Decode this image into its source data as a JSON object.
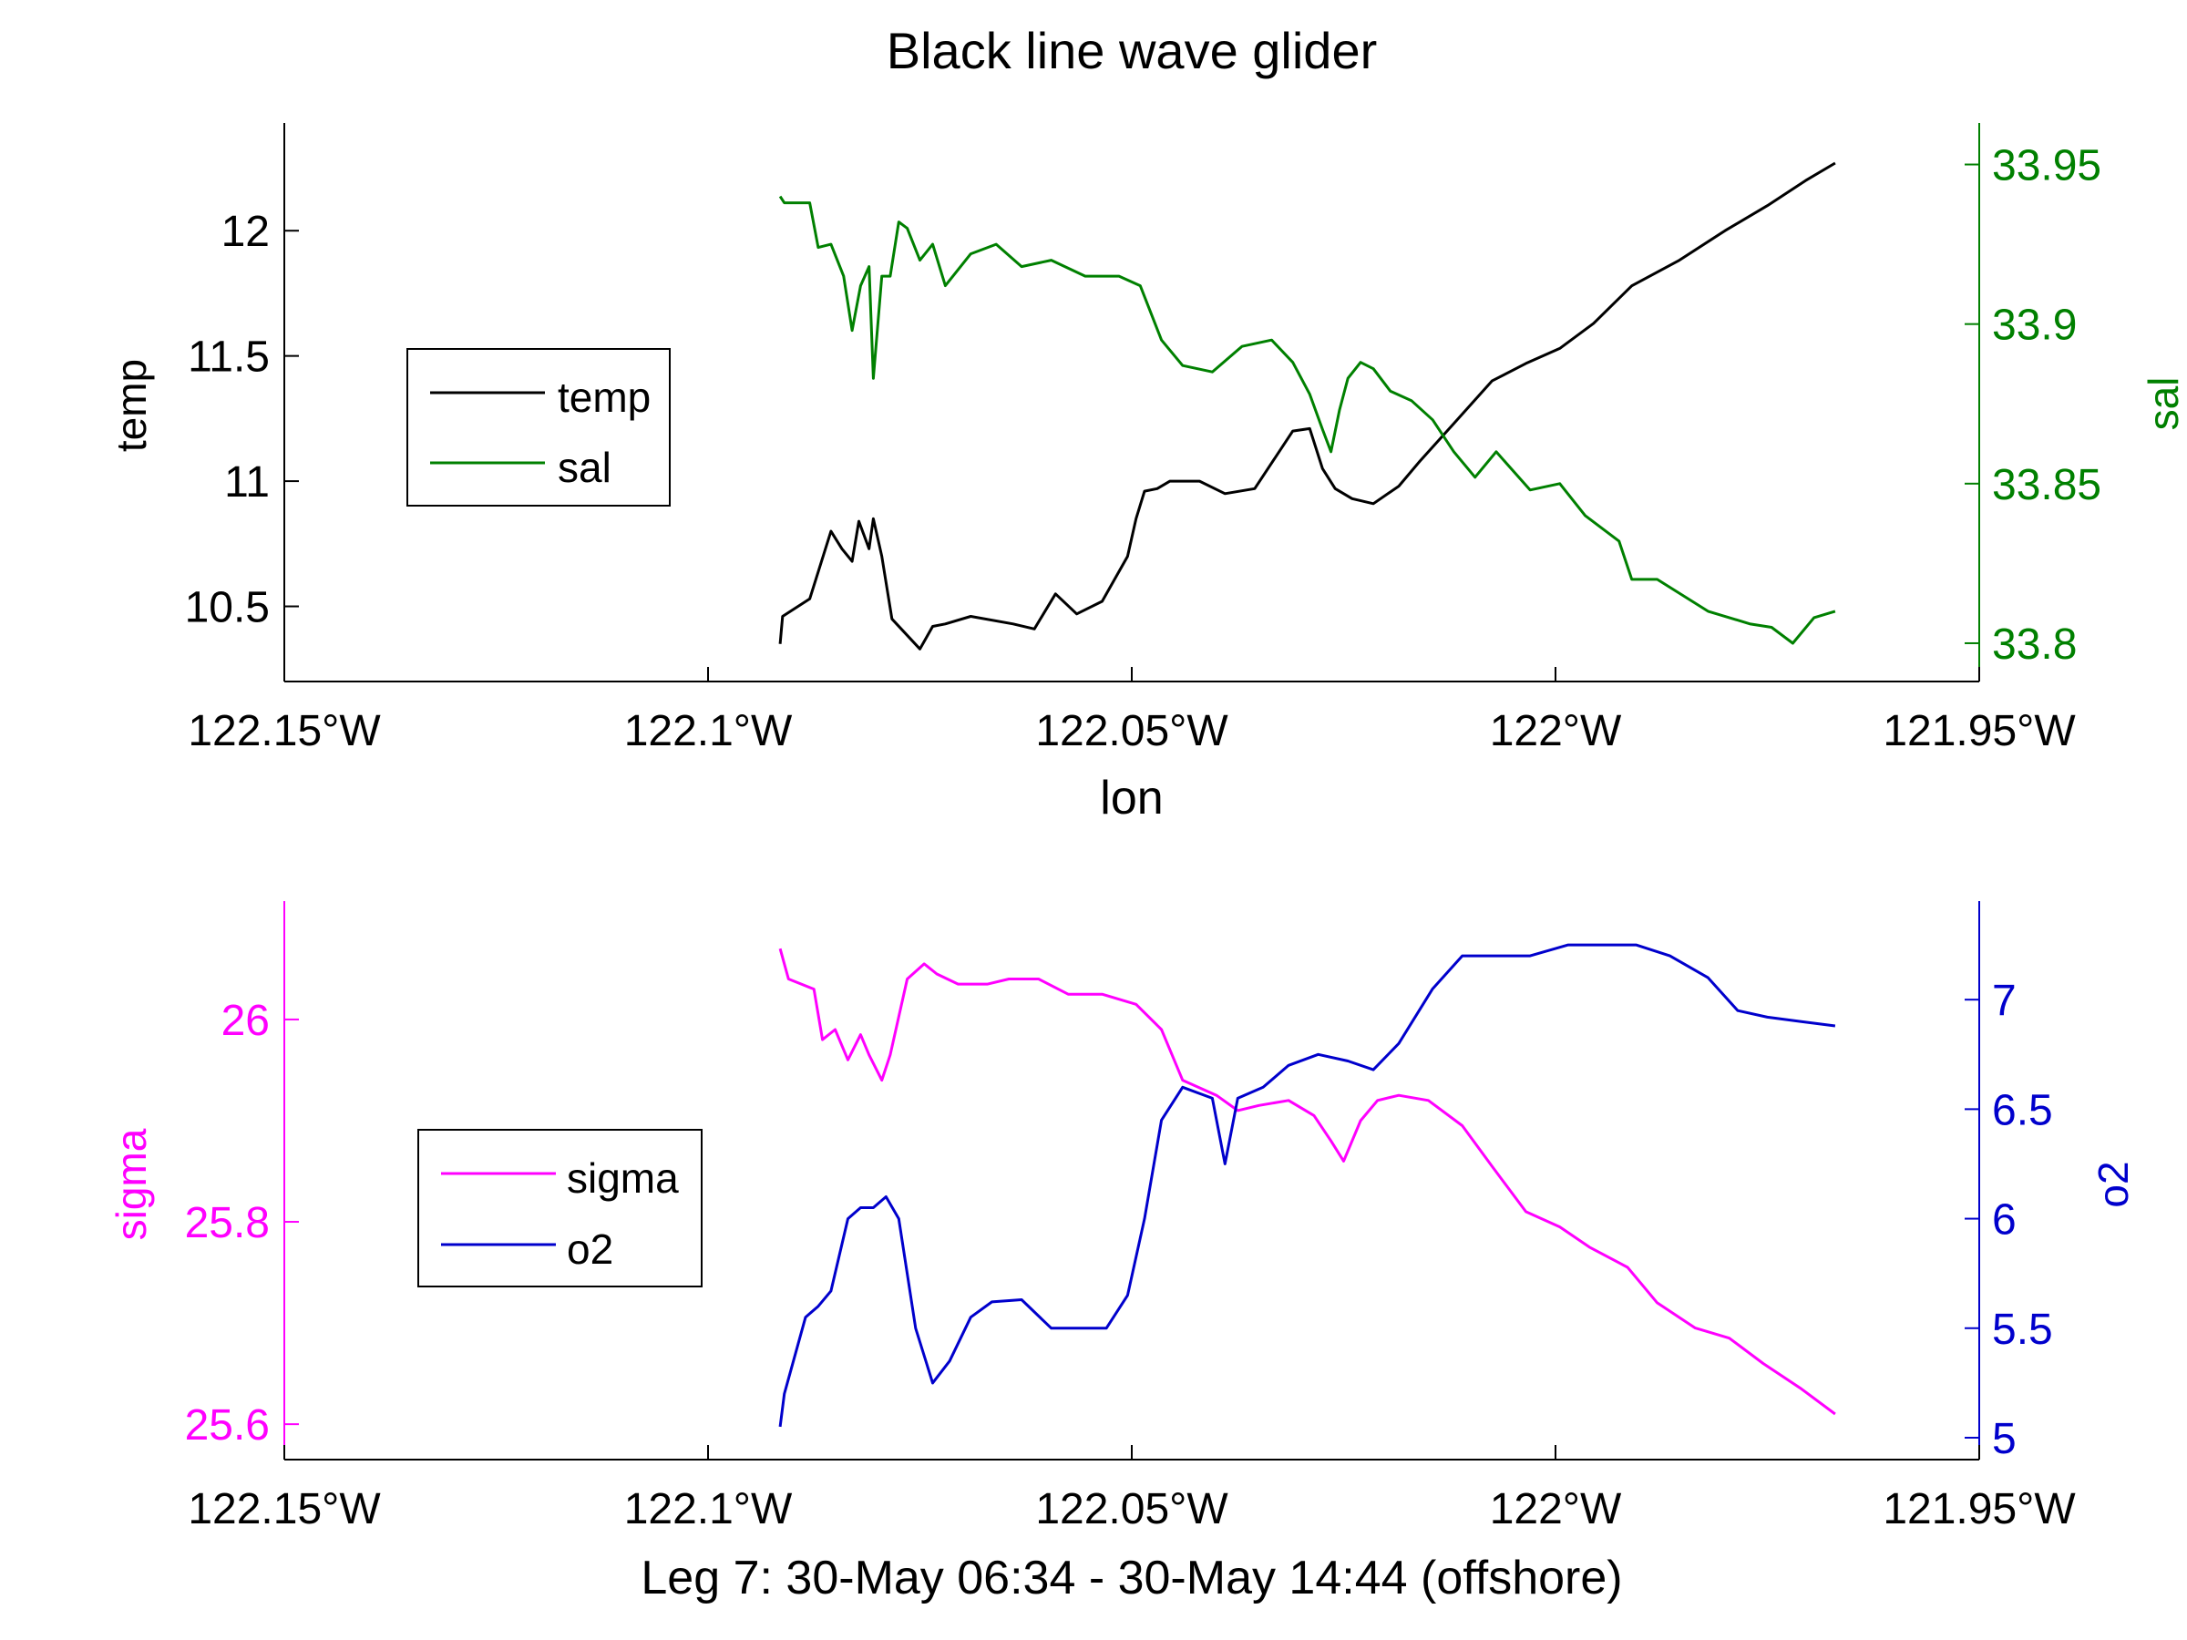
{
  "title": "Black line wave glider",
  "top": {
    "xlabel": "lon",
    "y1label": "temp",
    "y2label": "sal",
    "legend": [
      "temp",
      "sal"
    ]
  },
  "bottom": {
    "xlabel": "Leg 7: 30-May 06:34 - 30-May 14:44 (offshore)",
    "y1label": "sigma",
    "y2label": "o2",
    "legend": [
      "sigma",
      "o2"
    ]
  },
  "colors": {
    "temp": "#000000",
    "sal": "#008000",
    "sigma": "#ff00ff",
    "o2": "#0000cc",
    "axis": "#000000"
  },
  "chart_data": [
    {
      "type": "line",
      "title": "Black line wave glider",
      "xlabel": "lon",
      "xlim": [
        -122.15,
        -121.95
      ],
      "xticks": [
        -122.15,
        -122.1,
        -122.05,
        -122.0,
        -121.95
      ],
      "xticklabels": [
        "122.15°W",
        "122.1°W",
        "122.05°W",
        "122°W",
        "121.95°W"
      ],
      "grid": false,
      "legend_position": "left",
      "y_left": {
        "label": "temp",
        "lim": [
          10.2,
          12.43
        ],
        "ticks": [
          10.5,
          11,
          11.5,
          12
        ],
        "ticklabels": [
          "10.5",
          "11",
          "11.5",
          "12"
        ]
      },
      "y_right": {
        "label": "sal",
        "lim": [
          33.788,
          33.963
        ],
        "ticks": [
          33.8,
          33.85,
          33.9,
          33.95
        ],
        "ticklabels": [
          "33.8",
          "33.85",
          "33.9",
          "33.95"
        ]
      },
      "series": [
        {
          "name": "temp",
          "axis": "left",
          "x": [
            -122.0915,
            -122.0912,
            -122.088,
            -122.0855,
            -122.0842,
            -122.083,
            -122.0822,
            -122.081,
            -122.0805,
            -122.0795,
            -122.0783,
            -122.075,
            -122.0735,
            -122.072,
            -122.069,
            -122.064,
            -122.0615,
            -122.059,
            -122.0565,
            -122.0535,
            -122.0505,
            -122.0495,
            -122.0485,
            -122.047,
            -122.0455,
            -122.042,
            -122.039,
            -122.0355,
            -122.031,
            -122.029,
            -122.0275,
            -122.026,
            -122.024,
            -122.0215,
            -122.0185,
            -122.016,
            -122.012,
            -122.0075,
            -122.0035,
            -121.9995,
            -121.9955,
            -121.991,
            -121.9855,
            -121.98,
            -121.975,
            -121.9705,
            -121.967
          ],
          "y": [
            10.35,
            10.46,
            10.53,
            10.8,
            10.73,
            10.68,
            10.84,
            10.73,
            10.85,
            10.7,
            10.45,
            10.33,
            10.42,
            10.43,
            10.46,
            10.43,
            10.41,
            10.55,
            10.47,
            10.52,
            10.7,
            10.85,
            10.96,
            10.97,
            11.0,
            11.0,
            10.95,
            10.97,
            11.2,
            11.21,
            11.05,
            10.97,
            10.93,
            10.91,
            10.98,
            11.08,
            11.23,
            11.4,
            11.47,
            11.53,
            11.63,
            11.78,
            11.88,
            12.0,
            12.1,
            12.2,
            12.27
          ]
        },
        {
          "name": "sal",
          "axis": "right",
          "x": [
            -122.0915,
            -122.091,
            -122.088,
            -122.087,
            -122.0855,
            -122.084,
            -122.083,
            -122.082,
            -122.081,
            -122.0805,
            -122.0795,
            -122.0785,
            -122.0775,
            -122.0765,
            -122.075,
            -122.0735,
            -122.072,
            -122.069,
            -122.066,
            -122.063,
            -122.0595,
            -122.0555,
            -122.0515,
            -122.049,
            -122.0465,
            -122.044,
            -122.0405,
            -122.037,
            -122.0335,
            -122.031,
            -122.029,
            -122.0275,
            -122.0265,
            -122.0255,
            -122.0245,
            -122.023,
            -122.0215,
            -122.0195,
            -122.017,
            -122.0145,
            -122.012,
            -122.0095,
            -122.007,
            -122.003,
            -121.9995,
            -121.9965,
            -121.9925,
            -121.991,
            -121.988,
            -121.985,
            -121.982,
            -121.9795,
            -121.977,
            -121.9745,
            -121.972,
            -121.9695,
            -121.967
          ],
          "y": [
            33.94,
            33.938,
            33.938,
            33.924,
            33.925,
            33.915,
            33.898,
            33.912,
            33.918,
            33.883,
            33.915,
            33.915,
            33.932,
            33.93,
            33.92,
            33.925,
            33.912,
            33.922,
            33.925,
            33.918,
            33.92,
            33.915,
            33.915,
            33.912,
            33.895,
            33.887,
            33.885,
            33.893,
            33.895,
            33.888,
            33.878,
            33.867,
            33.86,
            33.873,
            33.883,
            33.888,
            33.886,
            33.879,
            33.876,
            33.87,
            33.86,
            33.852,
            33.86,
            33.848,
            33.85,
            33.84,
            33.832,
            33.82,
            33.82,
            33.815,
            33.81,
            33.808,
            33.806,
            33.805,
            33.8,
            33.808,
            33.81
          ]
        }
      ]
    },
    {
      "type": "line",
      "xlabel": "Leg 7: 30-May 06:34 - 30-May 14:44 (offshore)",
      "xlim": [
        -122.15,
        -121.95
      ],
      "xticks": [
        -122.15,
        -122.1,
        -122.05,
        -122.0,
        -121.95
      ],
      "xticklabels": [
        "122.15°W",
        "122.1°W",
        "122.05°W",
        "122°W",
        "121.95°W"
      ],
      "grid": false,
      "legend_position": "left",
      "y_left": {
        "label": "sigma",
        "lim": [
          25.565,
          26.117
        ],
        "ticks": [
          25.6,
          25.8,
          26.0
        ],
        "ticklabels": [
          "25.6",
          "25.8",
          "26"
        ]
      },
      "y_right": {
        "label": "o2",
        "lim": [
          4.9,
          7.45
        ],
        "ticks": [
          5,
          5.5,
          6,
          6.5,
          7
        ],
        "ticklabels": [
          "5",
          "5.5",
          "6",
          "6.5",
          "7"
        ]
      },
      "series": [
        {
          "name": "sigma",
          "axis": "left",
          "x": [
            -122.0915,
            -122.0905,
            -122.0875,
            -122.0865,
            -122.085,
            -122.0835,
            -122.082,
            -122.081,
            -122.0795,
            -122.0785,
            -122.0765,
            -122.0745,
            -122.073,
            -122.0705,
            -122.067,
            -122.0645,
            -122.061,
            -122.0575,
            -122.0535,
            -122.0495,
            -122.0465,
            -122.044,
            -122.04,
            -122.0375,
            -122.035,
            -122.0315,
            -122.0285,
            -122.0265,
            -122.025,
            -122.023,
            -122.021,
            -122.0185,
            -122.015,
            -122.011,
            -122.0075,
            -122.0035,
            -121.9995,
            -121.996,
            -121.9915,
            -121.988,
            -121.9835,
            -121.9795,
            -121.9755,
            -121.971,
            -121.967
          ],
          "y": [
            26.07,
            26.04,
            26.03,
            25.98,
            25.99,
            25.96,
            25.985,
            25.965,
            25.94,
            25.965,
            26.04,
            26.055,
            26.045,
            26.035,
            26.035,
            26.04,
            26.04,
            26.025,
            26.025,
            26.015,
            25.99,
            25.94,
            25.925,
            25.91,
            25.915,
            25.92,
            25.905,
            25.88,
            25.86,
            25.9,
            25.92,
            25.925,
            25.92,
            25.895,
            25.855,
            25.81,
            25.795,
            25.775,
            25.755,
            25.72,
            25.695,
            25.685,
            25.66,
            25.635,
            25.61
          ]
        },
        {
          "name": "o2",
          "axis": "right",
          "x": [
            -122.0915,
            -122.091,
            -122.0885,
            -122.087,
            -122.0855,
            -122.0835,
            -122.082,
            -122.0805,
            -122.079,
            -122.0775,
            -122.0755,
            -122.0735,
            -122.0715,
            -122.069,
            -122.0665,
            -122.063,
            -122.0595,
            -122.056,
            -122.053,
            -122.0505,
            -122.0485,
            -122.0465,
            -122.044,
            -122.0405,
            -122.039,
            -122.0375,
            -122.0345,
            -122.0315,
            -122.028,
            -122.0245,
            -122.0215,
            -122.0185,
            -122.0145,
            -122.011,
            -122.008,
            -122.003,
            -121.9985,
            -121.995,
            -121.9905,
            -121.9865,
            -121.982,
            -121.9785,
            -121.975,
            -121.971,
            -121.967
          ],
          "y": [
            5.05,
            5.2,
            5.55,
            5.6,
            5.67,
            6.0,
            6.05,
            6.05,
            6.1,
            6.0,
            5.5,
            5.25,
            5.35,
            5.55,
            5.62,
            5.63,
            5.5,
            5.5,
            5.5,
            5.65,
            6.0,
            6.45,
            6.6,
            6.55,
            6.25,
            6.55,
            6.6,
            6.7,
            6.75,
            6.72,
            6.68,
            6.8,
            7.05,
            7.2,
            7.2,
            7.2,
            7.25,
            7.25,
            7.25,
            7.2,
            7.1,
            6.95,
            6.92,
            6.9,
            6.88
          ]
        }
      ]
    }
  ]
}
